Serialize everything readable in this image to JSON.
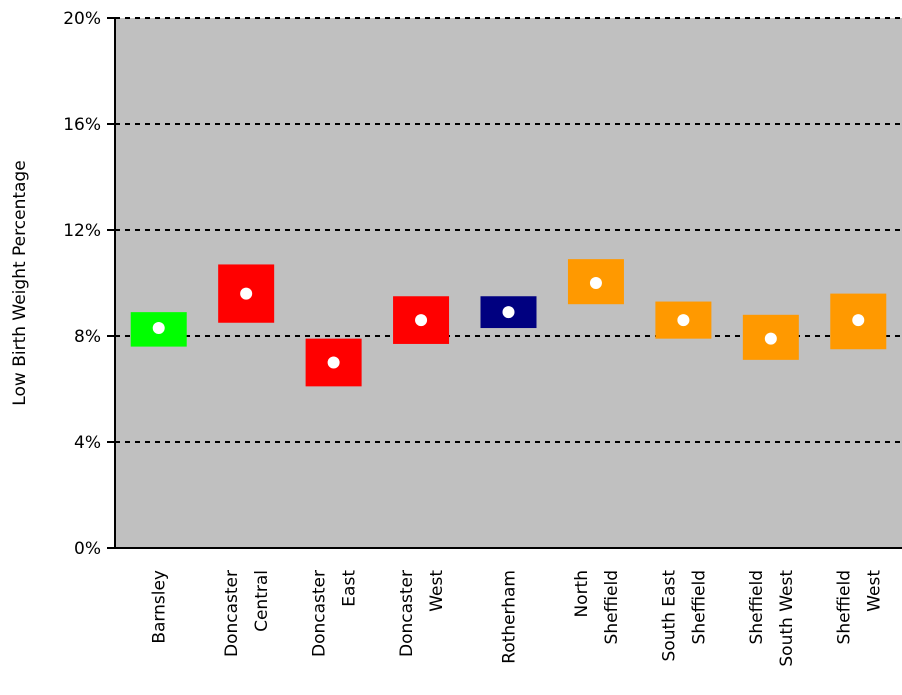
{
  "chart_data": {
    "type": "scatter",
    "ylabel": "Low Birth Weight Percentage",
    "y_tick_labels": [
      "0%",
      "4%",
      "8%",
      "12%",
      "16%",
      "20%"
    ],
    "y_ticks": [
      0,
      4,
      8,
      12,
      16,
      20
    ],
    "ylim": [
      0,
      20
    ],
    "grid": "horizontal dashed",
    "background": "#c0c0c0",
    "categories": [
      {
        "lines": [
          "Barnsley"
        ]
      },
      {
        "lines": [
          "Doncaster",
          "Central"
        ]
      },
      {
        "lines": [
          "Doncaster",
          "East"
        ]
      },
      {
        "lines": [
          "Doncaster",
          "West"
        ]
      },
      {
        "lines": [
          "Rotherham"
        ]
      },
      {
        "lines": [
          "North",
          "Sheffield"
        ]
      },
      {
        "lines": [
          "South East",
          "Sheffield"
        ]
      },
      {
        "lines": [
          "Sheffield",
          "South West"
        ]
      },
      {
        "lines": [
          "Sheffield",
          "West"
        ]
      }
    ],
    "values": [
      8.3,
      9.6,
      7.0,
      8.6,
      8.9,
      10.0,
      8.6,
      7.9,
      8.6
    ],
    "lower": [
      7.6,
      8.5,
      6.1,
      7.7,
      8.3,
      9.2,
      7.9,
      7.1,
      7.5
    ],
    "upper": [
      8.9,
      10.7,
      7.9,
      9.5,
      9.5,
      10.9,
      9.3,
      8.8,
      9.6
    ],
    "colors": [
      "#00ff00",
      "#ff0000",
      "#ff0000",
      "#ff0000",
      "#000080",
      "#ff9900",
      "#ff9900",
      "#ff9900",
      "#ff9900"
    ],
    "point_color": "#ffffff"
  }
}
